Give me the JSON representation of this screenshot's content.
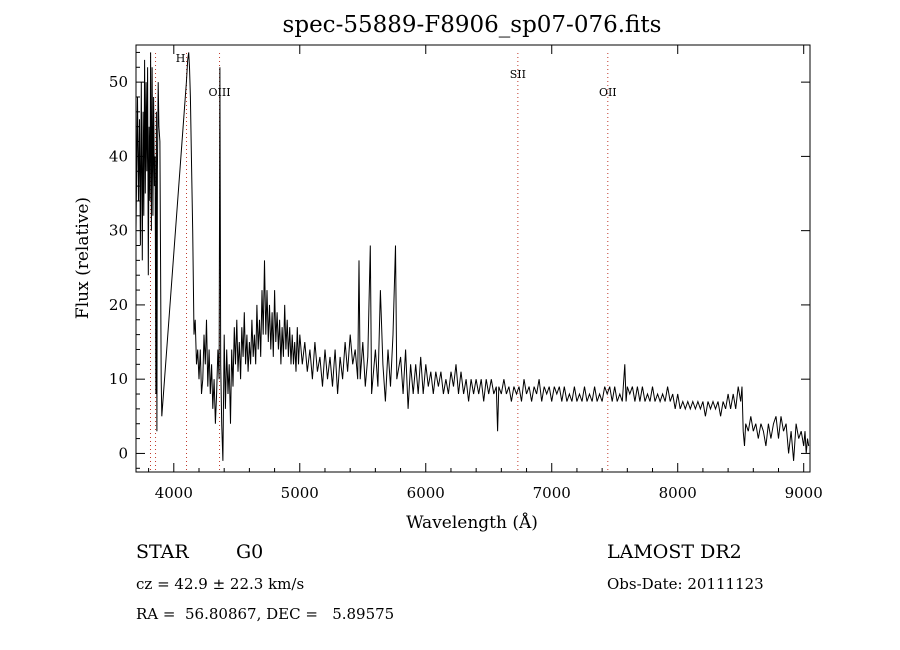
{
  "chart_data": {
    "type": "line",
    "title": "spec-55889-F8906_sp07-076.fits",
    "xlabel": "Wavelength (Å)",
    "ylabel": "Flux (relative)",
    "xlim": [
      3700,
      9050
    ],
    "ylim": [
      -2.5,
      55
    ],
    "xticks": [
      4000,
      5000,
      6000,
      7000,
      8000,
      9000
    ],
    "yticks": [
      0,
      10,
      20,
      30,
      40,
      50
    ],
    "grid": false,
    "line_color": "#000000",
    "marker_color": "#c0392b",
    "lines": [
      {
        "label": "",
        "x": 3815
      },
      {
        "label": "",
        "x": 3855
      },
      {
        "label": "H",
        "x": 4101
      },
      {
        "label": "OIII",
        "x": 4363
      },
      {
        "label": "SII",
        "x": 6731
      },
      {
        "label": "OII",
        "x": 7445
      }
    ],
    "spectrum": [
      [
        3700,
        30
      ],
      [
        3712,
        48
      ],
      [
        3720,
        34
      ],
      [
        3728,
        45
      ],
      [
        3735,
        28
      ],
      [
        3742,
        50
      ],
      [
        3750,
        26
      ],
      [
        3756,
        46
      ],
      [
        3762,
        32
      ],
      [
        3768,
        53
      ],
      [
        3774,
        35
      ],
      [
        3780,
        50
      ],
      [
        3786,
        38
      ],
      [
        3792,
        52
      ],
      [
        3798,
        24
      ],
      [
        3804,
        44
      ],
      [
        3810,
        34
      ],
      [
        3816,
        54
      ],
      [
        3822,
        30
      ],
      [
        3828,
        52
      ],
      [
        3834,
        32
      ],
      [
        3840,
        48
      ],
      [
        3846,
        36
      ],
      [
        3852,
        40
      ],
      [
        3858,
        8
      ],
      [
        3862,
        46
      ],
      [
        3866,
        3
      ],
      [
        3870,
        38
      ],
      [
        3876,
        50
      ],
      [
        3882,
        44
      ],
      [
        3890,
        42
      ],
      [
        3900,
        10
      ],
      [
        3905,
        5
      ],
      [
        4100,
        50
      ],
      [
        4110,
        53
      ],
      [
        4118,
        54
      ],
      [
        4125,
        52
      ],
      [
        4132,
        48
      ],
      [
        4140,
        40
      ],
      [
        4150,
        30
      ],
      [
        4160,
        16
      ],
      [
        4170,
        18
      ],
      [
        4180,
        12
      ],
      [
        4190,
        14
      ],
      [
        4200,
        10
      ],
      [
        4210,
        14
      ],
      [
        4220,
        8
      ],
      [
        4230,
        10
      ],
      [
        4240,
        16
      ],
      [
        4250,
        12
      ],
      [
        4260,
        18
      ],
      [
        4270,
        9
      ],
      [
        4280,
        14
      ],
      [
        4290,
        8
      ],
      [
        4300,
        12
      ],
      [
        4310,
        6
      ],
      [
        4320,
        10
      ],
      [
        4330,
        4
      ],
      [
        4340,
        8
      ],
      [
        4350,
        14
      ],
      [
        4360,
        10
      ],
      [
        4366,
        52
      ],
      [
        4372,
        12
      ],
      [
        4380,
        4
      ],
      [
        4390,
        -1
      ],
      [
        4400,
        16
      ],
      [
        4410,
        6
      ],
      [
        4420,
        14
      ],
      [
        4430,
        8
      ],
      [
        4440,
        12
      ],
      [
        4450,
        4
      ],
      [
        4460,
        14
      ],
      [
        4470,
        9
      ],
      [
        4480,
        17
      ],
      [
        4490,
        12
      ],
      [
        4500,
        18
      ],
      [
        4510,
        11
      ],
      [
        4520,
        15
      ],
      [
        4530,
        10
      ],
      [
        4540,
        17
      ],
      [
        4550,
        13
      ],
      [
        4560,
        19
      ],
      [
        4570,
        12
      ],
      [
        4580,
        16
      ],
      [
        4590,
        11
      ],
      [
        4600,
        15
      ],
      [
        4610,
        12
      ],
      [
        4620,
        18
      ],
      [
        4630,
        13
      ],
      [
        4640,
        16
      ],
      [
        4650,
        12
      ],
      [
        4660,
        20
      ],
      [
        4670,
        14
      ],
      [
        4680,
        18
      ],
      [
        4690,
        13
      ],
      [
        4700,
        22
      ],
      [
        4710,
        16
      ],
      [
        4720,
        26
      ],
      [
        4730,
        16
      ],
      [
        4740,
        22
      ],
      [
        4750,
        15
      ],
      [
        4760,
        20
      ],
      [
        4770,
        14
      ],
      [
        4780,
        19
      ],
      [
        4790,
        13
      ],
      [
        4800,
        22
      ],
      [
        4810,
        15
      ],
      [
        4820,
        19
      ],
      [
        4830,
        14
      ],
      [
        4840,
        18
      ],
      [
        4850,
        12
      ],
      [
        4860,
        17
      ],
      [
        4870,
        13
      ],
      [
        4880,
        20
      ],
      [
        4890,
        14
      ],
      [
        4900,
        18
      ],
      [
        4910,
        13
      ],
      [
        4920,
        17
      ],
      [
        4930,
        12
      ],
      [
        4940,
        16
      ],
      [
        4950,
        12
      ],
      [
        4960,
        15
      ],
      [
        4970,
        11
      ],
      [
        4980,
        17
      ],
      [
        4990,
        12
      ],
      [
        5000,
        16
      ],
      [
        5020,
        12
      ],
      [
        5040,
        15
      ],
      [
        5060,
        11
      ],
      [
        5080,
        14
      ],
      [
        5100,
        10
      ],
      [
        5120,
        15
      ],
      [
        5140,
        11
      ],
      [
        5160,
        13
      ],
      [
        5180,
        9
      ],
      [
        5200,
        14
      ],
      [
        5220,
        10
      ],
      [
        5240,
        13
      ],
      [
        5260,
        9
      ],
      [
        5280,
        14
      ],
      [
        5300,
        8
      ],
      [
        5320,
        13
      ],
      [
        5340,
        10
      ],
      [
        5360,
        15
      ],
      [
        5380,
        11
      ],
      [
        5400,
        16
      ],
      [
        5420,
        12
      ],
      [
        5440,
        14
      ],
      [
        5460,
        10
      ],
      [
        5470,
        26
      ],
      [
        5480,
        10
      ],
      [
        5500,
        15
      ],
      [
        5520,
        9
      ],
      [
        5540,
        13
      ],
      [
        5560,
        28
      ],
      [
        5570,
        8
      ],
      [
        5600,
        14
      ],
      [
        5620,
        9
      ],
      [
        5640,
        22
      ],
      [
        5660,
        12
      ],
      [
        5680,
        7
      ],
      [
        5700,
        14
      ],
      [
        5720,
        9
      ],
      [
        5740,
        16
      ],
      [
        5760,
        28
      ],
      [
        5770,
        10
      ],
      [
        5800,
        13
      ],
      [
        5820,
        8
      ],
      [
        5840,
        14
      ],
      [
        5860,
        6
      ],
      [
        5880,
        12
      ],
      [
        5900,
        8
      ],
      [
        5920,
        12
      ],
      [
        5940,
        8
      ],
      [
        5960,
        13
      ],
      [
        5980,
        8
      ],
      [
        6000,
        12
      ],
      [
        6020,
        9
      ],
      [
        6040,
        11
      ],
      [
        6060,
        8
      ],
      [
        6080,
        11
      ],
      [
        6100,
        9
      ],
      [
        6120,
        11
      ],
      [
        6140,
        8
      ],
      [
        6160,
        10
      ],
      [
        6180,
        8
      ],
      [
        6200,
        11
      ],
      [
        6220,
        9
      ],
      [
        6240,
        12
      ],
      [
        6260,
        8
      ],
      [
        6280,
        11
      ],
      [
        6300,
        8
      ],
      [
        6320,
        10
      ],
      [
        6340,
        7
      ],
      [
        6360,
        10
      ],
      [
        6380,
        8
      ],
      [
        6400,
        10
      ],
      [
        6420,
        8
      ],
      [
        6440,
        10
      ],
      [
        6460,
        7
      ],
      [
        6480,
        10
      ],
      [
        6500,
        8
      ],
      [
        6520,
        10
      ],
      [
        6540,
        8
      ],
      [
        6560,
        9
      ],
      [
        6570,
        3
      ],
      [
        6580,
        9
      ],
      [
        6600,
        8
      ],
      [
        6620,
        10
      ],
      [
        6640,
        8
      ],
      [
        6660,
        9
      ],
      [
        6680,
        7
      ],
      [
        6700,
        9
      ],
      [
        6720,
        8
      ],
      [
        6740,
        9
      ],
      [
        6760,
        7
      ],
      [
        6780,
        10
      ],
      [
        6800,
        8
      ],
      [
        6820,
        9
      ],
      [
        6840,
        7
      ],
      [
        6860,
        9
      ],
      [
        6880,
        8
      ],
      [
        6900,
        10
      ],
      [
        6920,
        7
      ],
      [
        6940,
        9
      ],
      [
        6960,
        8
      ],
      [
        6980,
        9
      ],
      [
        7000,
        7
      ],
      [
        7020,
        9
      ],
      [
        7040,
        8
      ],
      [
        7060,
        9
      ],
      [
        7080,
        7
      ],
      [
        7100,
        9
      ],
      [
        7120,
        7
      ],
      [
        7140,
        8
      ],
      [
        7160,
        7
      ],
      [
        7180,
        9
      ],
      [
        7200,
        7
      ],
      [
        7220,
        8
      ],
      [
        7240,
        7
      ],
      [
        7260,
        9
      ],
      [
        7280,
        7
      ],
      [
        7300,
        8
      ],
      [
        7320,
        7
      ],
      [
        7340,
        9
      ],
      [
        7360,
        7
      ],
      [
        7380,
        8
      ],
      [
        7400,
        7
      ],
      [
        7420,
        9
      ],
      [
        7440,
        8
      ],
      [
        7460,
        9
      ],
      [
        7480,
        7
      ],
      [
        7500,
        9
      ],
      [
        7520,
        7
      ],
      [
        7540,
        8
      ],
      [
        7560,
        7
      ],
      [
        7580,
        12
      ],
      [
        7590,
        7
      ],
      [
        7600,
        9
      ],
      [
        7620,
        8
      ],
      [
        7640,
        9
      ],
      [
        7660,
        7
      ],
      [
        7680,
        9
      ],
      [
        7700,
        7
      ],
      [
        7720,
        9
      ],
      [
        7740,
        7
      ],
      [
        7760,
        8
      ],
      [
        7780,
        7
      ],
      [
        7800,
        9
      ],
      [
        7820,
        7
      ],
      [
        7840,
        8
      ],
      [
        7860,
        7
      ],
      [
        7880,
        8
      ],
      [
        7900,
        7
      ],
      [
        7920,
        9
      ],
      [
        7940,
        7
      ],
      [
        7960,
        8
      ],
      [
        7980,
        6
      ],
      [
        8000,
        8
      ],
      [
        8020,
        6
      ],
      [
        8040,
        7
      ],
      [
        8060,
        6
      ],
      [
        8080,
        7
      ],
      [
        8100,
        6
      ],
      [
        8120,
        7
      ],
      [
        8140,
        6
      ],
      [
        8160,
        7
      ],
      [
        8180,
        6
      ],
      [
        8200,
        7
      ],
      [
        8220,
        5
      ],
      [
        8240,
        7
      ],
      [
        8260,
        6
      ],
      [
        8280,
        7
      ],
      [
        8300,
        6
      ],
      [
        8320,
        7
      ],
      [
        8340,
        5
      ],
      [
        8360,
        7
      ],
      [
        8380,
        6
      ],
      [
        8400,
        8
      ],
      [
        8420,
        6
      ],
      [
        8440,
        8
      ],
      [
        8460,
        6
      ],
      [
        8480,
        9
      ],
      [
        8500,
        7
      ],
      [
        8510,
        9
      ],
      [
        8520,
        3
      ],
      [
        8530,
        1
      ],
      [
        8540,
        4
      ],
      [
        8560,
        3
      ],
      [
        8580,
        5
      ],
      [
        8600,
        3
      ],
      [
        8620,
        4
      ],
      [
        8640,
        2
      ],
      [
        8660,
        4
      ],
      [
        8680,
        3
      ],
      [
        8700,
        1
      ],
      [
        8720,
        4
      ],
      [
        8740,
        2
      ],
      [
        8760,
        4
      ],
      [
        8780,
        5
      ],
      [
        8800,
        2
      ],
      [
        8820,
        5
      ],
      [
        8840,
        3
      ],
      [
        8860,
        4
      ],
      [
        8880,
        0
      ],
      [
        8900,
        3
      ],
      [
        8920,
        -1
      ],
      [
        8940,
        4
      ],
      [
        8960,
        2
      ],
      [
        8980,
        3
      ],
      [
        9000,
        1
      ],
      [
        9010,
        3
      ],
      [
        9020,
        0
      ],
      [
        9030,
        2
      ],
      [
        9040,
        1
      ]
    ]
  },
  "info": {
    "class": "STAR",
    "subclass": "G0",
    "survey": "LAMOST DR2",
    "cz": "cz = 42.9 ± 22.3 km/s",
    "obs_date": "Obs-Date: 20111123",
    "coords": "RA =  56.80867, DEC =   5.89575"
  }
}
